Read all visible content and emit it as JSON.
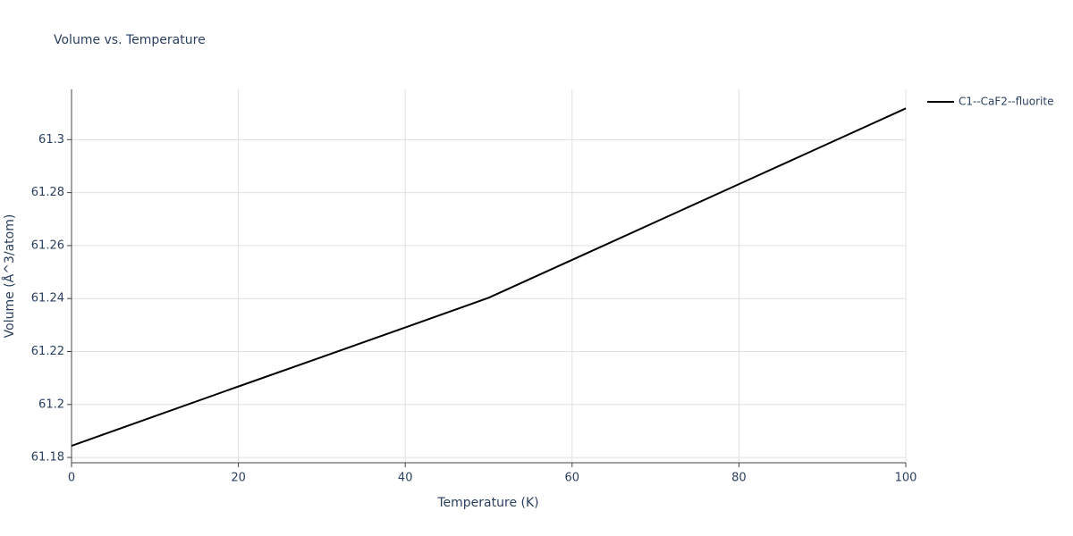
{
  "chart_data": {
    "type": "line",
    "title": "Volume vs. Temperature",
    "x_label": "Temperature (K)",
    "y_label": "Volume (Å^3/atom)",
    "x": [
      0,
      10,
      20,
      30,
      40,
      50,
      60,
      70,
      80,
      90,
      100
    ],
    "series": [
      {
        "name": "C1--CaF2--fluorite",
        "color": "#000000",
        "values": [
          61.1844,
          61.1956,
          61.2068,
          61.2179,
          61.2291,
          61.2403,
          61.2546,
          61.2689,
          61.2832,
          61.2975,
          61.3118
        ]
      }
    ],
    "xlim": [
      0,
      100
    ],
    "xticks": [
      0,
      20,
      40,
      60,
      80,
      100
    ],
    "ylim": [
      61.178,
      61.319
    ],
    "yticks": [
      61.18,
      61.2,
      61.22,
      61.24,
      61.26,
      61.28,
      61.3
    ],
    "grid": true,
    "legend": "right"
  }
}
